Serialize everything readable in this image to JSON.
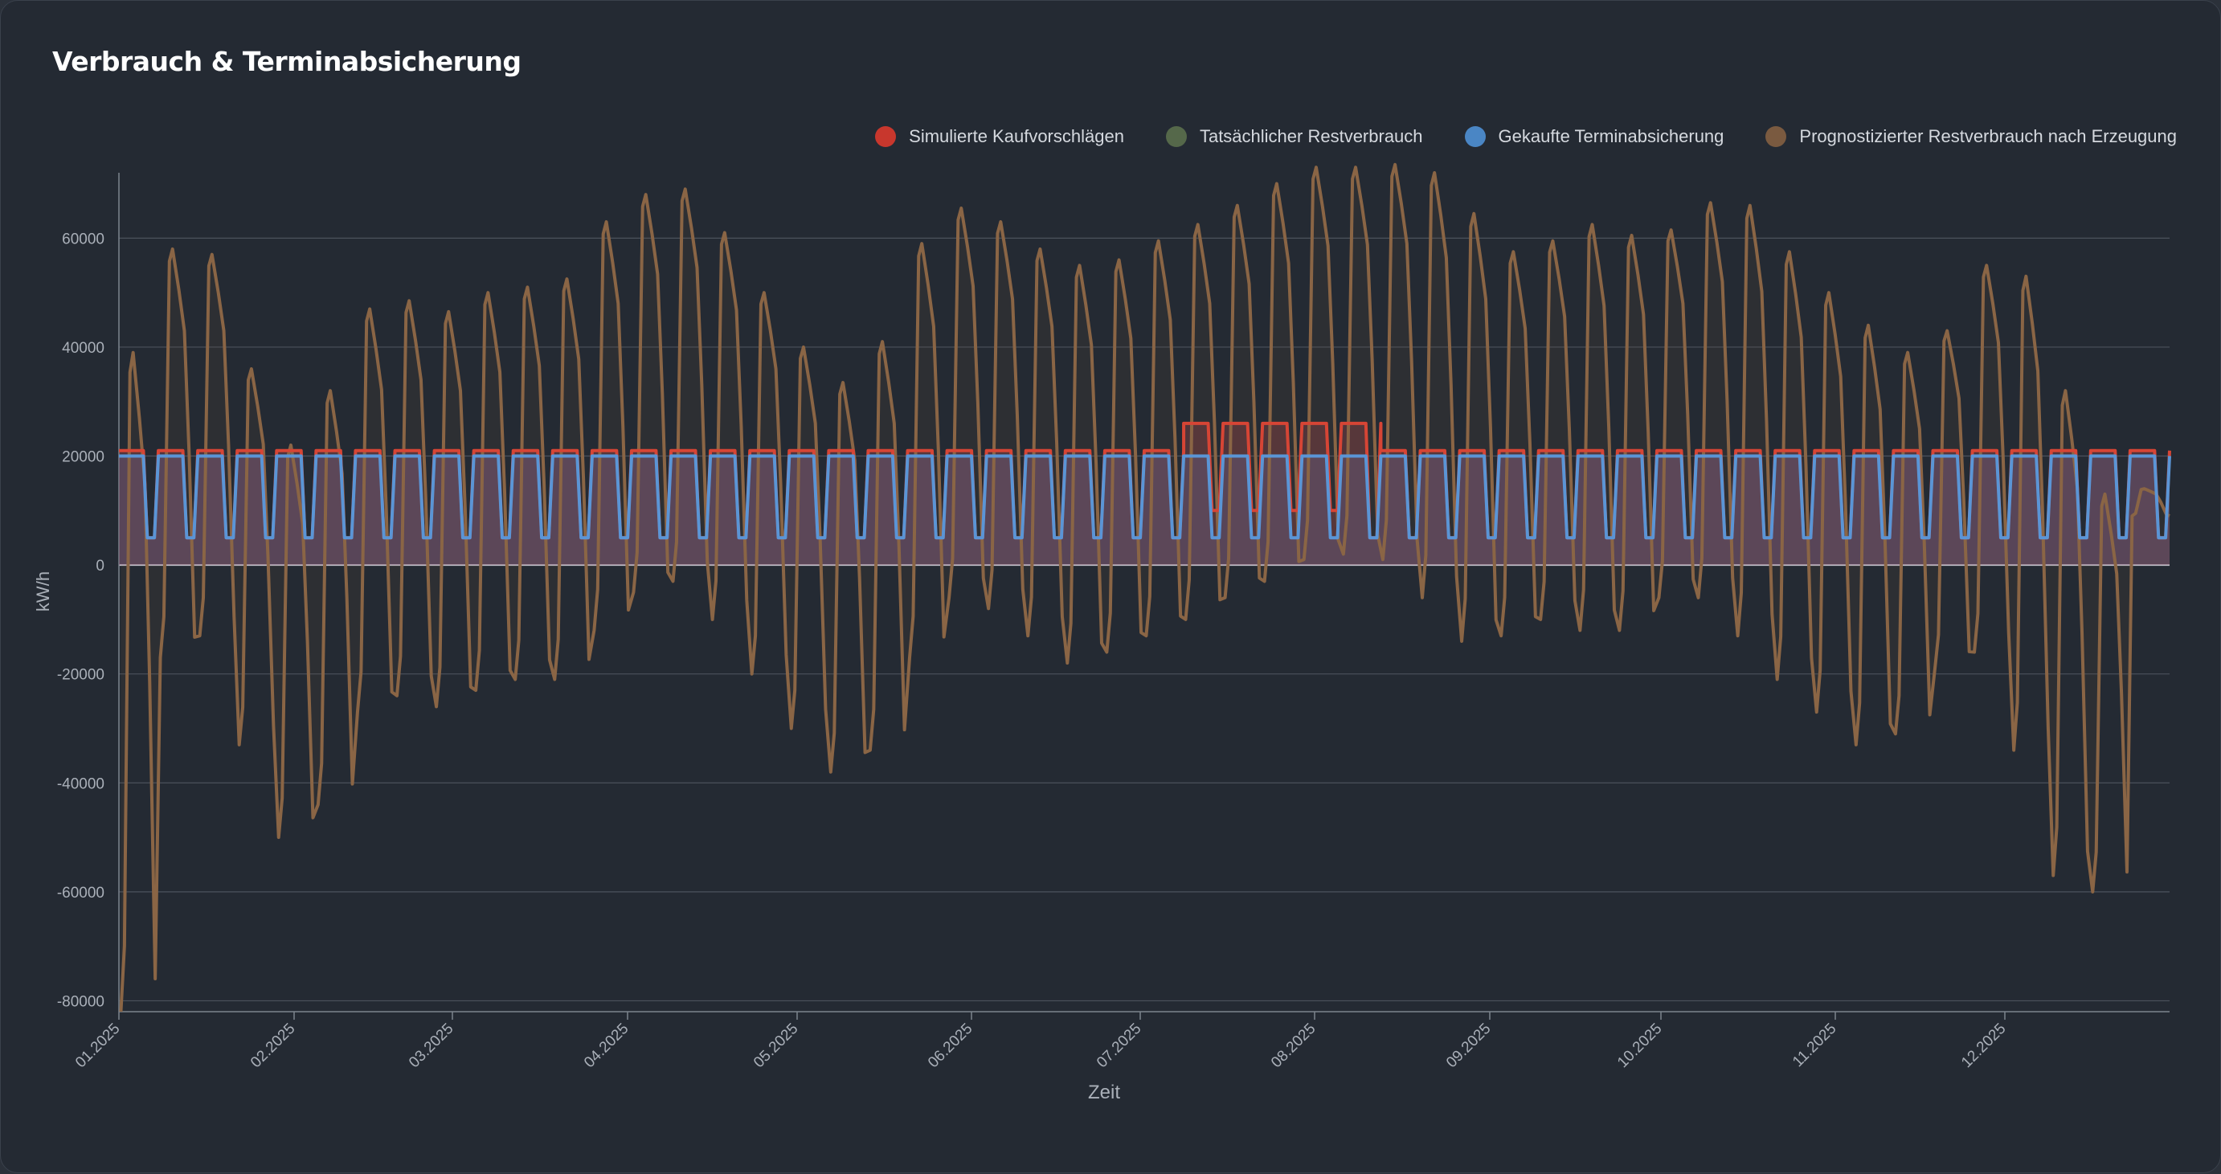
{
  "title": "Verbrauch & Terminabsicherung",
  "legend": [
    {
      "label": "Simulierte Kaufvorschlägen",
      "color": "#c8372d"
    },
    {
      "label": "Tatsächlicher Restverbrauch",
      "color": "#55684a"
    },
    {
      "label": "Gekaufte Terminabsicherung",
      "color": "#4a86c5"
    },
    {
      "label": "Prognostizierter Restverbrauch nach Erzeugung",
      "color": "#7a5a40"
    }
  ],
  "chart_data": {
    "type": "line",
    "title": "Verbrauch & Terminabsicherung",
    "xlabel": "Zeit",
    "ylabel": "kW/h",
    "ylim": [
      -82000,
      72000
    ],
    "yticks": [
      60000,
      40000,
      20000,
      0,
      -20000,
      -40000,
      -60000,
      -80000
    ],
    "yticklabels": [
      "60000",
      "40000",
      "20000",
      "0",
      "-20000",
      "-40000",
      "-60000",
      "-80000"
    ],
    "xticklabels": [
      "01.2025",
      "02.2025",
      "03.2025",
      "04.2025",
      "05.2025",
      "06.2025",
      "07.2025",
      "08.2025",
      "09.2025",
      "10.2025",
      "11.2025",
      "12.2025"
    ],
    "grid": true,
    "legend_position": "top-right",
    "series": [
      {
        "name": "Simulierte Kaufvorschlägen",
        "color": "#d64535",
        "values": [
          21000,
          21000,
          21000,
          21000,
          21000,
          21000,
          21000,
          21000,
          21000,
          21000,
          21000,
          21000,
          21000,
          21000,
          21000,
          21000,
          21000,
          21000,
          21000,
          21000,
          21000,
          21000,
          21000,
          21000,
          21000,
          21000,
          21000,
          26000,
          26000,
          26000,
          26000,
          26000,
          21000,
          21000,
          21000,
          21000,
          21000,
          21000,
          21000,
          21000,
          21000,
          21000,
          21000,
          21000,
          21000,
          21000,
          21000,
          21000,
          21000,
          21000,
          21000,
          21000
        ],
        "low_values": [
          5000,
          5000,
          5000,
          5000,
          5000,
          5000,
          5000,
          5000,
          5000,
          5000,
          5000,
          5000,
          5000,
          5000,
          5000,
          5000,
          5000,
          5000,
          5000,
          5000,
          5000,
          5000,
          5000,
          5000,
          5000,
          5000,
          5000,
          10000,
          10000,
          10000,
          10000,
          5000,
          5000,
          5000,
          5000,
          5000,
          5000,
          5000,
          5000,
          5000,
          5000,
          5000,
          5000,
          5000,
          5000,
          5000,
          5000,
          5000,
          5000,
          5000,
          5000,
          5000
        ]
      },
      {
        "name": "Gekaufte Terminabsicherung",
        "color": "#5a95d6",
        "high": 20000,
        "low": 5000
      },
      {
        "name": "Prognostizierter Restverbrauch nach Erzeugung",
        "color": "#8a6545",
        "weekly_high": [
          39000,
          58000,
          57000,
          36000,
          22000,
          32000,
          47000,
          48500,
          46500,
          50000,
          51000,
          52500,
          63000,
          68000,
          69000,
          61000,
          50000,
          40000,
          33500,
          41000,
          59000,
          65500,
          63000,
          58000,
          55000,
          56000,
          59500,
          62500,
          66000,
          70000,
          73000,
          73000,
          73500,
          72000,
          64500,
          57500,
          59500,
          62500,
          60500,
          61500,
          66500,
          66000,
          57500,
          50000,
          44000,
          39000,
          43000,
          55000,
          53000,
          32000,
          13000,
          14000
        ],
        "weekly_low": [
          -82000,
          -17000,
          -13000,
          -33000,
          -50000,
          -44000,
          -27000,
          -24000,
          -26000,
          -23000,
          -21000,
          -21000,
          -12000,
          -5000,
          -3000,
          -10000,
          -20000,
          -30000,
          -38000,
          -34000,
          -17000,
          -6000,
          -8000,
          -13000,
          -18000,
          -16000,
          -13000,
          -10000,
          -6000,
          -3000,
          1000,
          2000,
          1000,
          -6000,
          -14000,
          -13000,
          -10000,
          -12000,
          -12000,
          -6000,
          -6000,
          -13000,
          -21000,
          -27000,
          -33000,
          -31000,
          -19000,
          -16000,
          -34000,
          -57000,
          -60000,
          9000
        ]
      }
    ]
  }
}
